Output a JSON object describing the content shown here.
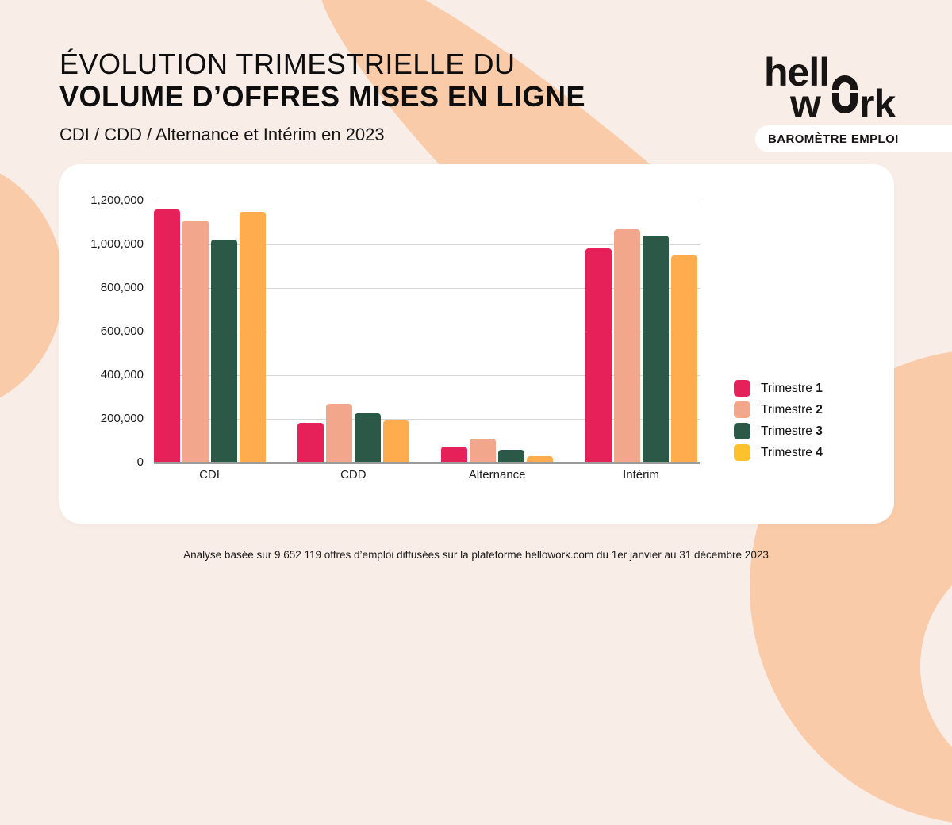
{
  "header": {
    "title_line1": "ÉVOLUTION TRIMESTRIELLE DU",
    "title_line2": "VOLUME D’OFFRES MISES EN LIGNE",
    "subtitle": "CDI / CDD / Alternance et Intérim en 2023"
  },
  "brand": {
    "logo_name": "hellowork",
    "logo_line1": "hell",
    "logo_line2_left": "w",
    "logo_line2_right": "rk",
    "badge": "BAROMÈTRE EMPLOI"
  },
  "chart_data": {
    "type": "bar",
    "categories": [
      "CDI",
      "CDD",
      "Alternance",
      "Intérim"
    ],
    "series": [
      {
        "name": "Trimestre 1",
        "color": "#E62058",
        "values": [
          1160000,
          180000,
          72000,
          980000
        ]
      },
      {
        "name": "Trimestre 2",
        "color": "#F2A78D",
        "values": [
          1110000,
          268000,
          108000,
          1070000
        ]
      },
      {
        "name": "Trimestre 3",
        "color": "#2B5847",
        "values": [
          1020000,
          226000,
          58000,
          1040000
        ]
      },
      {
        "name": "Trimestre 4",
        "color": "#FFAC4E",
        "legend_color": "#FCC22D",
        "values": [
          1150000,
          194000,
          30000,
          950000
        ]
      }
    ],
    "ylim": [
      0,
      1200000
    ],
    "yticks": [
      0,
      200000,
      400000,
      600000,
      800000,
      1000000,
      1200000
    ],
    "ytick_labels": [
      "0",
      "200,000",
      "400,000",
      "600,000",
      "800,000",
      "1,000,000",
      "1,200,000"
    ],
    "grid": true,
    "legend_position": "right",
    "xlabel": "",
    "ylabel": ""
  },
  "footer": {
    "note": "Analyse basée sur 9 652 119 offres d’emploi diffusées sur la plateforme hellowork.com du 1er janvier au 31 décembre 2023"
  },
  "colors": {
    "background": "#F9EDE7",
    "blob": "#FACBA9",
    "card": "#FFFFFF",
    "gridline": "#D6D6D6",
    "axis_line": "#9B9B9B"
  }
}
